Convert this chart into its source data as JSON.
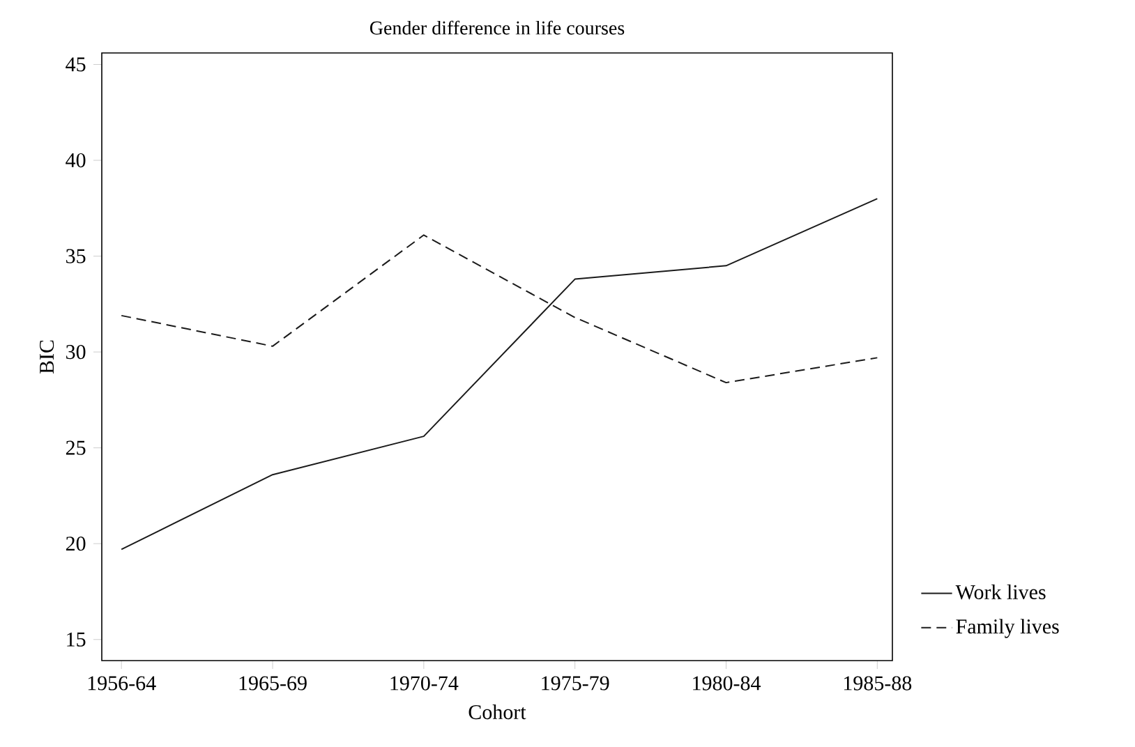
{
  "chart_data": {
    "type": "line",
    "title": "Gender difference in life courses",
    "xlabel": "Cohort",
    "ylabel": "BIC",
    "categories": [
      "1956-64",
      "1965-69",
      "1970-74",
      "1975-79",
      "1980-84",
      "1985-88"
    ],
    "series": [
      {
        "name": "Work lives",
        "color": "#1a1a1a",
        "line_style": "solid",
        "values": [
          19.7,
          23.6,
          25.6,
          33.8,
          34.5,
          38.0
        ]
      },
      {
        "name": "Family lives",
        "color": "#1a1a1a",
        "line_style": "dashed",
        "values": [
          31.9,
          30.3,
          36.1,
          31.8,
          28.4,
          29.7
        ]
      }
    ],
    "ylim": [
      13.9,
      45.6
    ],
    "yticks": [
      15,
      20,
      25,
      30,
      35,
      40,
      45
    ],
    "grid": false,
    "legend": "bottom right",
    "marker": "none"
  }
}
